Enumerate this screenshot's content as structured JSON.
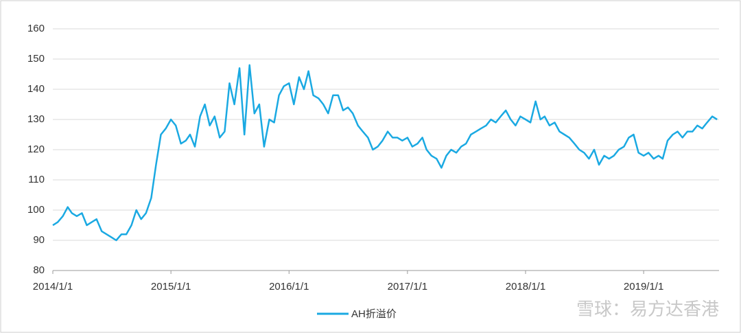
{
  "chart_data": {
    "type": "line",
    "x": [
      "2014/1/1",
      "2014/1/16",
      "2014/2/1",
      "2014/2/16",
      "2014/3/1",
      "2014/3/16",
      "2014/4/1",
      "2014/4/16",
      "2014/5/1",
      "2014/5/16",
      "2014/6/1",
      "2014/6/16",
      "2014/7/1",
      "2014/7/16",
      "2014/8/1",
      "2014/8/16",
      "2014/9/1",
      "2014/9/16",
      "2014/10/1",
      "2014/10/16",
      "2014/11/1",
      "2014/11/16",
      "2014/12/1",
      "2014/12/16",
      "2015/1/1",
      "2015/1/16",
      "2015/2/1",
      "2015/2/16",
      "2015/3/1",
      "2015/3/16",
      "2015/4/1",
      "2015/4/16",
      "2015/5/1",
      "2015/5/16",
      "2015/6/1",
      "2015/6/16",
      "2015/7/1",
      "2015/7/16",
      "2015/8/1",
      "2015/8/16",
      "2015/9/1",
      "2015/9/16",
      "2015/10/1",
      "2015/10/16",
      "2015/11/1",
      "2015/11/16",
      "2015/12/1",
      "2015/12/16",
      "2016/1/1",
      "2016/1/16",
      "2016/2/1",
      "2016/2/16",
      "2016/3/1",
      "2016/3/16",
      "2016/4/1",
      "2016/4/16",
      "2016/5/1",
      "2016/5/16",
      "2016/6/1",
      "2016/6/16",
      "2016/7/1",
      "2016/7/16",
      "2016/8/1",
      "2016/8/16",
      "2016/9/1",
      "2016/9/16",
      "2016/10/1",
      "2016/10/16",
      "2016/11/1",
      "2016/11/16",
      "2016/12/1",
      "2016/12/16",
      "2017/1/1",
      "2017/1/16",
      "2017/2/1",
      "2017/2/16",
      "2017/3/1",
      "2017/3/16",
      "2017/4/1",
      "2017/4/16",
      "2017/5/1",
      "2017/5/16",
      "2017/6/1",
      "2017/6/16",
      "2017/7/1",
      "2017/7/16",
      "2017/8/1",
      "2017/8/16",
      "2017/9/1",
      "2017/9/16",
      "2017/10/1",
      "2017/10/16",
      "2017/11/1",
      "2017/11/16",
      "2017/12/1",
      "2017/12/16",
      "2018/1/1",
      "2018/1/16",
      "2018/2/1",
      "2018/2/16",
      "2018/3/1",
      "2018/3/16",
      "2018/4/1",
      "2018/4/16",
      "2018/5/1",
      "2018/5/16",
      "2018/6/1",
      "2018/6/16",
      "2018/7/1",
      "2018/7/16",
      "2018/8/1",
      "2018/8/16",
      "2018/9/1",
      "2018/9/16",
      "2018/10/1",
      "2018/10/16",
      "2018/11/1",
      "2018/11/16",
      "2018/12/1",
      "2018/12/16",
      "2019/1/1",
      "2019/1/16",
      "2019/2/1",
      "2019/2/16",
      "2019/3/1",
      "2019/3/16",
      "2019/4/1",
      "2019/4/16",
      "2019/5/1",
      "2019/5/16",
      "2019/6/1",
      "2019/6/16",
      "2019/7/1",
      "2019/7/16",
      "2019/8/1",
      "2019/8/16"
    ],
    "series": [
      {
        "name": "AH折溢价",
        "color": "#1aa9e2",
        "values": [
          95,
          96,
          98,
          101,
          99,
          98,
          99,
          95,
          96,
          97,
          93,
          92,
          91,
          90,
          92,
          92,
          95,
          100,
          97,
          99,
          104,
          115,
          125,
          127,
          130,
          128,
          122,
          123,
          125,
          121,
          131,
          135,
          128,
          131,
          124,
          126,
          142,
          135,
          147,
          125,
          148,
          132,
          135,
          121,
          130,
          129,
          138,
          141,
          142,
          135,
          144,
          140,
          146,
          138,
          137,
          135,
          132,
          138,
          138,
          133,
          134,
          132,
          128,
          126,
          124,
          120,
          121,
          123,
          126,
          124,
          124,
          123,
          124,
          121,
          122,
          124,
          120,
          118,
          117,
          114,
          118,
          120,
          119,
          121,
          122,
          125,
          126,
          127,
          128,
          130,
          129,
          131,
          133,
          130,
          128,
          131,
          130,
          129,
          136,
          130,
          131,
          128,
          129,
          126,
          125,
          124,
          122,
          120,
          119,
          117,
          120,
          115,
          118,
          117,
          118,
          120,
          121,
          124,
          125,
          119,
          118,
          119,
          117,
          118,
          117,
          123,
          125,
          126,
          124,
          126,
          126,
          128,
          127,
          129,
          131,
          130
        ]
      }
    ],
    "xlim": [
      "2014/1/1",
      "2019/8/22"
    ],
    "xticks": [
      "2014/1/1",
      "2015/1/1",
      "2016/1/1",
      "2017/1/1",
      "2018/1/1",
      "2019/1/1"
    ],
    "ylim": [
      80,
      160
    ],
    "yticks": [
      80,
      90,
      100,
      110,
      120,
      130,
      140,
      150,
      160
    ],
    "grid": true,
    "legend": "bottom",
    "watermark": "雪球：易方达香港"
  }
}
